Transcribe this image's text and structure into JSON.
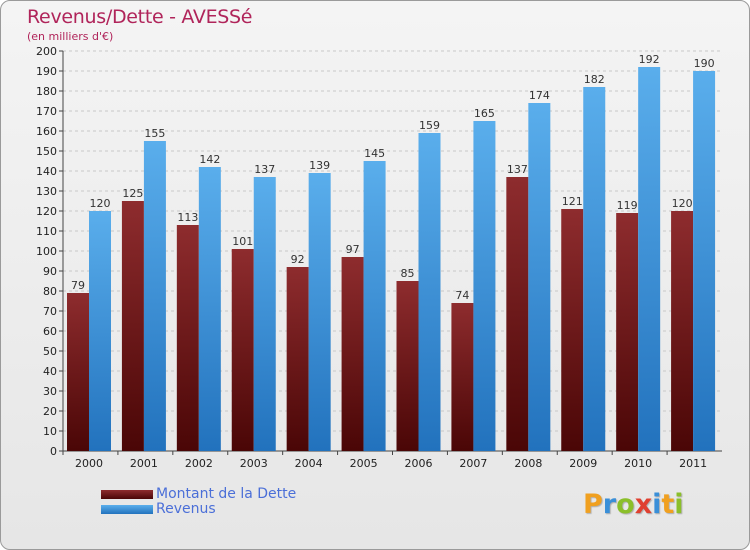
{
  "header": {
    "title": "Revenus/Dette - AVESSé",
    "subtitle": "(en milliers d'€)"
  },
  "colors": {
    "dette": "#7a1a1e",
    "revenus": "#3f96dc",
    "title": "#b0245a",
    "legend_text": "#4b6fd8"
  },
  "chart_data": {
    "type": "bar",
    "title": "Revenus/Dette - AVESSé",
    "subtitle": "(en milliers d'€)",
    "xlabel": "",
    "ylabel": "",
    "ylim": [
      0,
      200
    ],
    "ytick_step": 10,
    "grid": "horizontal dashed",
    "legend_position": "bottom-left",
    "categories": [
      "2000",
      "2001",
      "2002",
      "2003",
      "2004",
      "2005",
      "2006",
      "2007",
      "2008",
      "2009",
      "2010",
      "2011"
    ],
    "series": [
      {
        "name": "Montant de la Dette",
        "color": "#7a1a1e",
        "values": [
          79,
          125,
          113,
          101,
          92,
          97,
          85,
          74,
          137,
          121,
          119,
          120
        ]
      },
      {
        "name": "Revenus",
        "color": "#3f96dc",
        "values": [
          120,
          155,
          142,
          137,
          139,
          145,
          159,
          165,
          174,
          182,
          192,
          190
        ]
      }
    ]
  },
  "legend": {
    "items": [
      "Montant de la Dette",
      "Revenus"
    ]
  },
  "logo": {
    "letters": [
      "P",
      "r",
      "o",
      "x",
      "i",
      "t",
      "i"
    ],
    "colors": [
      "#f0a020",
      "#3a8fd8",
      "#8bbf2a",
      "#e04030",
      "#3a8fd8",
      "#f0a020",
      "#8bbf2a"
    ]
  }
}
